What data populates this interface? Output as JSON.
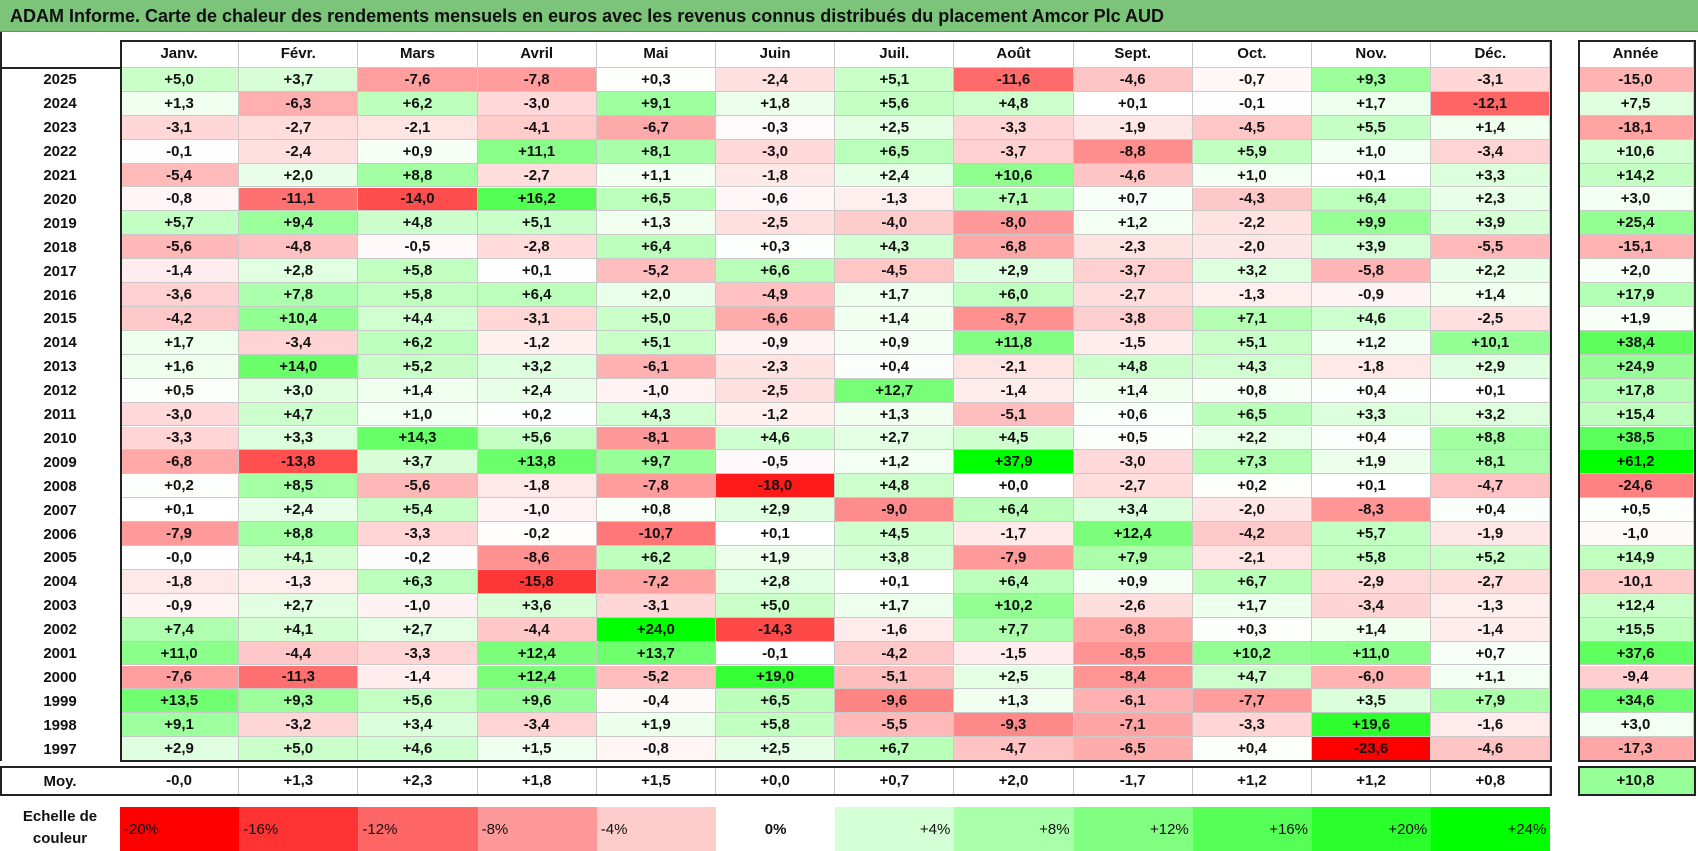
{
  "title": "ADAM Informe. Carte de chaleur des rendements mensuels en euros avec les revenus connus distribués du placement Amcor Plc AUD",
  "chart_data": {
    "type": "heatmap",
    "title": "ADAM Informe. Carte de chaleur des rendements mensuels en euros avec les revenus connus distribués du placement Amcor Plc AUD",
    "columns": [
      "Janv.",
      "Févr.",
      "Mars",
      "Avril",
      "Mai",
      "Juin",
      "Juil.",
      "Août",
      "Sept.",
      "Oct.",
      "Nov.",
      "Déc."
    ],
    "year_column_label": "Année",
    "rows": [
      {
        "year": "2025",
        "values": [
          "+5,0",
          "+3,7",
          "-7,6",
          "-7,8",
          "+0,3",
          "-2,4",
          "+5,1",
          "-11,6",
          "-4,6",
          "-0,7",
          "+9,3",
          "-3,1"
        ],
        "annual": "-15,0"
      },
      {
        "year": "2024",
        "values": [
          "+1,3",
          "-6,3",
          "+6,2",
          "-3,0",
          "+9,1",
          "+1,8",
          "+5,6",
          "+4,8",
          "+0,1",
          "-0,1",
          "+1,7",
          "-12,1"
        ],
        "annual": "+7,5"
      },
      {
        "year": "2023",
        "values": [
          "-3,1",
          "-2,7",
          "-2,1",
          "-4,1",
          "-6,7",
          "-0,3",
          "+2,5",
          "-3,3",
          "-1,9",
          "-4,5",
          "+5,5",
          "+1,4"
        ],
        "annual": "-18,1"
      },
      {
        "year": "2022",
        "values": [
          "-0,1",
          "-2,4",
          "+0,9",
          "+11,1",
          "+8,1",
          "-3,0",
          "+6,5",
          "-3,7",
          "-8,8",
          "+5,9",
          "+1,0",
          "-3,4"
        ],
        "annual": "+10,6"
      },
      {
        "year": "2021",
        "values": [
          "-5,4",
          "+2,0",
          "+8,8",
          "-2,7",
          "+1,1",
          "-1,8",
          "+2,4",
          "+10,6",
          "-4,6",
          "+1,0",
          "+0,1",
          "+3,3"
        ],
        "annual": "+14,2"
      },
      {
        "year": "2020",
        "values": [
          "-0,8",
          "-11,1",
          "-14,0",
          "+16,2",
          "+6,5",
          "-0,6",
          "-1,3",
          "+7,1",
          "+0,7",
          "-4,3",
          "+6,4",
          "+2,3"
        ],
        "annual": "+3,0"
      },
      {
        "year": "2019",
        "values": [
          "+5,7",
          "+9,4",
          "+4,8",
          "+5,1",
          "+1,3",
          "-2,5",
          "-4,0",
          "-8,0",
          "+1,2",
          "-2,2",
          "+9,9",
          "+3,9"
        ],
        "annual": "+25,4"
      },
      {
        "year": "2018",
        "values": [
          "-5,6",
          "-4,8",
          "-0,5",
          "-2,8",
          "+6,4",
          "+0,3",
          "+4,3",
          "-6,8",
          "-2,3",
          "-2,0",
          "+3,9",
          "-5,5"
        ],
        "annual": "-15,1"
      },
      {
        "year": "2017",
        "values": [
          "-1,4",
          "+2,8",
          "+5,8",
          "+0,1",
          "-5,2",
          "+6,6",
          "-4,5",
          "+2,9",
          "-3,7",
          "+3,2",
          "-5,8",
          "+2,2"
        ],
        "annual": "+2,0"
      },
      {
        "year": "2016",
        "values": [
          "-3,6",
          "+7,8",
          "+5,8",
          "+6,4",
          "+2,0",
          "-4,9",
          "+1,7",
          "+6,0",
          "-2,7",
          "-1,3",
          "-0,9",
          "+1,4"
        ],
        "annual": "+17,9"
      },
      {
        "year": "2015",
        "values": [
          "-4,2",
          "+10,4",
          "+4,4",
          "-3,1",
          "+5,0",
          "-6,6",
          "+1,4",
          "-8,7",
          "-3,8",
          "+7,1",
          "+4,6",
          "-2,5"
        ],
        "annual": "+1,9"
      },
      {
        "year": "2014",
        "values": [
          "+1,7",
          "-3,4",
          "+6,2",
          "-1,2",
          "+5,1",
          "-0,9",
          "+0,9",
          "+11,8",
          "-1,5",
          "+5,1",
          "+1,2",
          "+10,1"
        ],
        "annual": "+38,4"
      },
      {
        "year": "2013",
        "values": [
          "+1,6",
          "+14,0",
          "+5,2",
          "+3,2",
          "-6,1",
          "-2,3",
          "+0,4",
          "-2,1",
          "+4,8",
          "+4,3",
          "-1,8",
          "+2,9"
        ],
        "annual": "+24,9"
      },
      {
        "year": "2012",
        "values": [
          "+0,5",
          "+3,0",
          "+1,4",
          "+2,4",
          "-1,0",
          "-2,5",
          "+12,7",
          "-1,4",
          "+1,4",
          "+0,8",
          "+0,4",
          "+0,1"
        ],
        "annual": "+17,8"
      },
      {
        "year": "2011",
        "values": [
          "-3,0",
          "+4,7",
          "+1,0",
          "+0,2",
          "+4,3",
          "-1,2",
          "+1,3",
          "-5,1",
          "+0,6",
          "+6,5",
          "+3,3",
          "+3,2"
        ],
        "annual": "+15,4"
      },
      {
        "year": "2010",
        "values": [
          "-3,3",
          "+3,3",
          "+14,3",
          "+5,6",
          "-8,1",
          "+4,6",
          "+2,7",
          "+4,5",
          "+0,5",
          "+2,2",
          "+0,4",
          "+8,8"
        ],
        "annual": "+38,5"
      },
      {
        "year": "2009",
        "values": [
          "-6,8",
          "-13,8",
          "+3,7",
          "+13,8",
          "+9,7",
          "-0,5",
          "+1,2",
          "+37,9",
          "-3,0",
          "+7,3",
          "+1,9",
          "+8,1"
        ],
        "annual": "+61,2"
      },
      {
        "year": "2008",
        "values": [
          "+0,2",
          "+8,5",
          "-5,6",
          "-1,8",
          "-7,8",
          "-18,0",
          "+4,8",
          "+0,0",
          "-2,7",
          "+0,2",
          "+0,1",
          "-4,7"
        ],
        "annual": "-24,6"
      },
      {
        "year": "2007",
        "values": [
          "+0,1",
          "+2,4",
          "+5,4",
          "-1,0",
          "+0,8",
          "+2,9",
          "-9,0",
          "+6,4",
          "+3,4",
          "-2,0",
          "-8,3",
          "+0,4"
        ],
        "annual": "+0,5"
      },
      {
        "year": "2006",
        "values": [
          "-7,9",
          "+8,8",
          "-3,3",
          "-0,2",
          "-10,7",
          "+0,1",
          "+4,5",
          "-1,7",
          "+12,4",
          "-4,2",
          "+5,7",
          "-1,9"
        ],
        "annual": "-1,0"
      },
      {
        "year": "2005",
        "values": [
          "-0,0",
          "+4,1",
          "-0,2",
          "-8,6",
          "+6,2",
          "+1,9",
          "+3,8",
          "-7,9",
          "+7,9",
          "-2,1",
          "+5,8",
          "+5,2"
        ],
        "annual": "+14,9"
      },
      {
        "year": "2004",
        "values": [
          "-1,8",
          "-1,3",
          "+6,3",
          "-15,8",
          "-7,2",
          "+2,8",
          "+0,1",
          "+6,4",
          "+0,9",
          "+6,7",
          "-2,9",
          "-2,7"
        ],
        "annual": "-10,1"
      },
      {
        "year": "2003",
        "values": [
          "-0,9",
          "+2,7",
          "-1,0",
          "+3,6",
          "-3,1",
          "+5,0",
          "+1,7",
          "+10,2",
          "-2,6",
          "+1,7",
          "-3,4",
          "-1,3"
        ],
        "annual": "+12,4"
      },
      {
        "year": "2002",
        "values": [
          "+7,4",
          "+4,1",
          "+2,7",
          "-4,4",
          "+24,0",
          "-14,3",
          "-1,6",
          "+7,7",
          "-6,8",
          "+0,3",
          "+1,4",
          "-1,4"
        ],
        "annual": "+15,5"
      },
      {
        "year": "2001",
        "values": [
          "+11,0",
          "-4,4",
          "-3,3",
          "+12,4",
          "+13,7",
          "-0,1",
          "-4,2",
          "-1,5",
          "-8,5",
          "+10,2",
          "+11,0",
          "+0,7"
        ],
        "annual": "+37,6"
      },
      {
        "year": "2000",
        "values": [
          "-7,6",
          "-11,3",
          "-1,4",
          "+12,4",
          "-5,2",
          "+19,0",
          "-5,1",
          "+2,5",
          "-8,4",
          "+4,7",
          "-6,0",
          "+1,1"
        ],
        "annual": "-9,4"
      },
      {
        "year": "1999",
        "values": [
          "+13,5",
          "+9,3",
          "+5,6",
          "+9,6",
          "-0,4",
          "+6,5",
          "-9,6",
          "+1,3",
          "-6,1",
          "-7,7",
          "+3,5",
          "+7,9"
        ],
        "annual": "+34,6"
      },
      {
        "year": "1998",
        "values": [
          "+9,1",
          "-3,2",
          "+3,4",
          "-3,4",
          "+1,9",
          "+5,8",
          "-5,5",
          "-9,3",
          "-7,1",
          "-3,3",
          "+19,6",
          "-1,6"
        ],
        "annual": "+3,0"
      },
      {
        "year": "1997",
        "values": [
          "+2,9",
          "+5,0",
          "+4,6",
          "+1,5",
          "-0,8",
          "+2,5",
          "+6,7",
          "-4,7",
          "-6,5",
          "+0,4",
          "-23,6",
          "-4,6"
        ],
        "annual": "-17,3"
      }
    ],
    "average": {
      "label": "Moy.",
      "values": [
        "-0,0",
        "+1,3",
        "+2,3",
        "+1,8",
        "+1,5",
        "+0,0",
        "+0,7",
        "+2,0",
        "-1,7",
        "+1,2",
        "+1,2",
        "+0,8"
      ],
      "annual": "+10,8"
    },
    "color_scale": {
      "label_line1": "Echelle de",
      "label_line2": "couleur",
      "steps": [
        "-20%",
        "-16%",
        "-12%",
        "-8%",
        "-4%",
        "0%",
        "+4%",
        "+8%",
        "+12%",
        "+16%",
        "+20%",
        "+24%"
      ],
      "negative_color": "#ff0000",
      "neutral_color": "#ffffff",
      "positive_color": "#00ff00"
    }
  }
}
